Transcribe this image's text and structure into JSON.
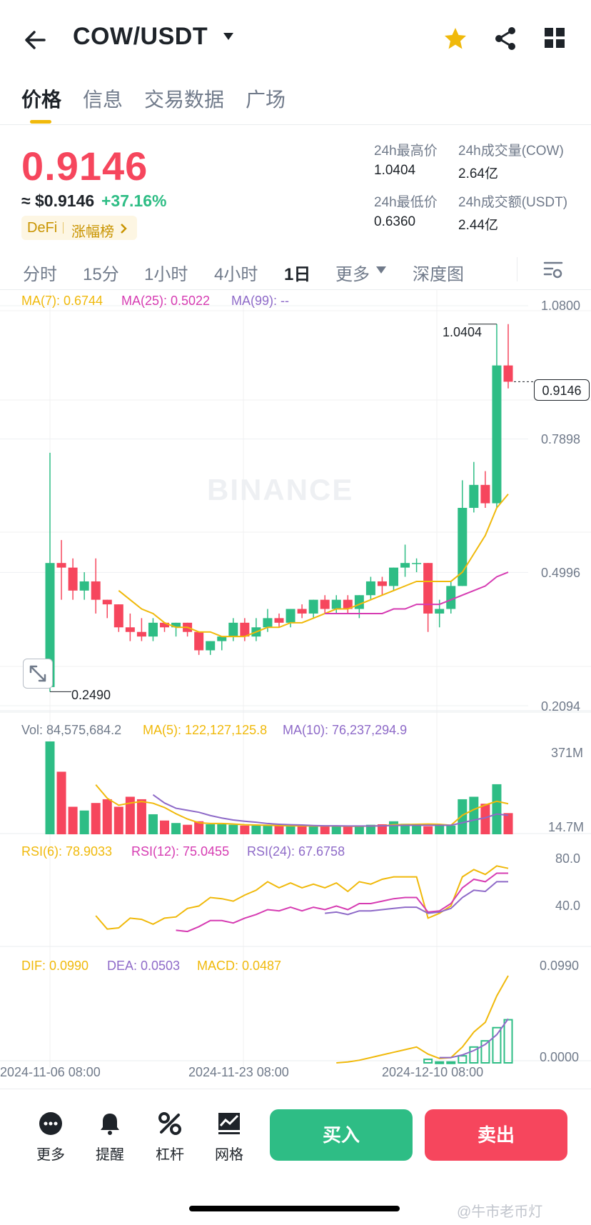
{
  "header": {
    "pair": "COW/USDT",
    "icons": {
      "back": "arrow-left-icon",
      "dropdown": "caret-down-icon",
      "favorite": "star-icon",
      "share": "share-icon",
      "menu": "grid-icon"
    },
    "accent_star": "#f0b90b"
  },
  "tabs": [
    "价格",
    "信息",
    "交易数据",
    "广场"
  ],
  "active_tab": "价格",
  "price": {
    "last": "0.9146",
    "usd": "≈ $0.9146",
    "change": "+37.16%",
    "tag_category": "DeFi",
    "tag_rank": "涨幅榜",
    "up_color": "#2ebd85",
    "down_color": "#f6465d"
  },
  "stats": {
    "high_label": "24h最高价",
    "high_value": "1.0404",
    "vol_label": "24h成交量(COW)",
    "vol_value": "2.64亿",
    "low_label": "24h最低价",
    "low_value": "0.6360",
    "amount_label": "24h成交额(USDT)",
    "amount_value": "2.44亿"
  },
  "periods": [
    "分时",
    "15分",
    "1小时",
    "4小时",
    "1日",
    "更多",
    "深度图"
  ],
  "active_period": "1日",
  "indicators": {
    "ma7": "MA(7): 0.6744",
    "ma25": "MA(25): 0.5022",
    "ma99": "MA(99): --",
    "vol": "Vol: 84,575,684.2",
    "vol_ma5": "MA(5): 122,127,125.8",
    "vol_ma10": "MA(10): 76,237,294.9",
    "rsi6": "RSI(6): 78.9033",
    "rsi12": "RSI(12): 75.0455",
    "rsi24": "RSI(24): 67.6758",
    "dif": "DIF: 0.0990",
    "dea": "DEA: 0.0503",
    "macd": "MACD: 0.0487"
  },
  "axes": {
    "price_ticks": [
      "1.0800",
      "0.7898",
      "0.4996",
      "0.2094"
    ],
    "vol_ticks": [
      "371M",
      "14.7M"
    ],
    "rsi_ticks": [
      "80.0",
      "40.0"
    ],
    "macd_ticks": [
      "0.0990",
      "0.0000"
    ],
    "dates": [
      "2024-11-06 08:00",
      "2024-11-23 08:00",
      "2024-12-10 08:00"
    ],
    "high_marker": "1.0404",
    "low_marker": "0.2490",
    "current_price_tag": "0.9146"
  },
  "chart_data": {
    "type": "candlestick",
    "price_range": [
      0.2094,
      1.08
    ],
    "candles": [
      {
        "o": 0.25,
        "h": 0.76,
        "l": 0.24,
        "c": 0.52
      },
      {
        "o": 0.52,
        "h": 0.57,
        "l": 0.44,
        "c": 0.51
      },
      {
        "o": 0.51,
        "h": 0.53,
        "l": 0.44,
        "c": 0.46
      },
      {
        "o": 0.46,
        "h": 0.5,
        "l": 0.44,
        "c": 0.48
      },
      {
        "o": 0.48,
        "h": 0.53,
        "l": 0.41,
        "c": 0.44
      },
      {
        "o": 0.44,
        "h": 0.44,
        "l": 0.4,
        "c": 0.43
      },
      {
        "o": 0.43,
        "h": 0.43,
        "l": 0.37,
        "c": 0.38
      },
      {
        "o": 0.38,
        "h": 0.41,
        "l": 0.35,
        "c": 0.37
      },
      {
        "o": 0.37,
        "h": 0.4,
        "l": 0.35,
        "c": 0.36
      },
      {
        "o": 0.36,
        "h": 0.4,
        "l": 0.35,
        "c": 0.39
      },
      {
        "o": 0.39,
        "h": 0.39,
        "l": 0.37,
        "c": 0.38
      },
      {
        "o": 0.38,
        "h": 0.39,
        "l": 0.36,
        "c": 0.39
      },
      {
        "o": 0.39,
        "h": 0.39,
        "l": 0.36,
        "c": 0.37
      },
      {
        "o": 0.37,
        "h": 0.37,
        "l": 0.32,
        "c": 0.33
      },
      {
        "o": 0.33,
        "h": 0.35,
        "l": 0.32,
        "c": 0.35
      },
      {
        "o": 0.35,
        "h": 0.36,
        "l": 0.33,
        "c": 0.36
      },
      {
        "o": 0.36,
        "h": 0.4,
        "l": 0.35,
        "c": 0.39
      },
      {
        "o": 0.39,
        "h": 0.4,
        "l": 0.35,
        "c": 0.36
      },
      {
        "o": 0.36,
        "h": 0.4,
        "l": 0.35,
        "c": 0.38
      },
      {
        "o": 0.38,
        "h": 0.42,
        "l": 0.37,
        "c": 0.4
      },
      {
        "o": 0.4,
        "h": 0.41,
        "l": 0.38,
        "c": 0.39
      },
      {
        "o": 0.39,
        "h": 0.42,
        "l": 0.38,
        "c": 0.42
      },
      {
        "o": 0.42,
        "h": 0.43,
        "l": 0.4,
        "c": 0.41
      },
      {
        "o": 0.41,
        "h": 0.44,
        "l": 0.4,
        "c": 0.44
      },
      {
        "o": 0.44,
        "h": 0.45,
        "l": 0.41,
        "c": 0.42
      },
      {
        "o": 0.42,
        "h": 0.45,
        "l": 0.41,
        "c": 0.44
      },
      {
        "o": 0.44,
        "h": 0.45,
        "l": 0.41,
        "c": 0.42
      },
      {
        "o": 0.42,
        "h": 0.45,
        "l": 0.4,
        "c": 0.45
      },
      {
        "o": 0.45,
        "h": 0.49,
        "l": 0.44,
        "c": 0.48
      },
      {
        "o": 0.48,
        "h": 0.49,
        "l": 0.45,
        "c": 0.47
      },
      {
        "o": 0.47,
        "h": 0.51,
        "l": 0.46,
        "c": 0.51
      },
      {
        "o": 0.51,
        "h": 0.56,
        "l": 0.49,
        "c": 0.52
      },
      {
        "o": 0.52,
        "h": 0.53,
        "l": 0.5,
        "c": 0.52
      },
      {
        "o": 0.52,
        "h": 0.52,
        "l": 0.37,
        "c": 0.41
      },
      {
        "o": 0.41,
        "h": 0.44,
        "l": 0.38,
        "c": 0.42
      },
      {
        "o": 0.42,
        "h": 0.48,
        "l": 0.41,
        "c": 0.47
      },
      {
        "o": 0.47,
        "h": 0.7,
        "l": 0.47,
        "c": 0.64
      },
      {
        "o": 0.64,
        "h": 0.74,
        "l": 0.63,
        "c": 0.69
      },
      {
        "o": 0.69,
        "h": 0.72,
        "l": 0.64,
        "c": 0.65
      },
      {
        "o": 0.65,
        "h": 1.04,
        "l": 0.64,
        "c": 0.95
      },
      {
        "o": 0.95,
        "h": 1.04,
        "l": 0.9,
        "c": 0.9146
      }
    ],
    "ma7": [
      null,
      null,
      null,
      null,
      null,
      null,
      0.46,
      0.44,
      0.42,
      0.41,
      0.39,
      0.38,
      0.38,
      0.37,
      0.37,
      0.36,
      0.36,
      0.36,
      0.37,
      0.38,
      0.38,
      0.39,
      0.39,
      0.4,
      0.41,
      0.42,
      0.42,
      0.43,
      0.44,
      0.45,
      0.46,
      0.47,
      0.48,
      0.48,
      0.48,
      0.48,
      0.5,
      0.54,
      0.58,
      0.64,
      0.67
    ],
    "ma25": [
      null,
      null,
      null,
      null,
      null,
      null,
      null,
      null,
      null,
      null,
      null,
      null,
      null,
      null,
      null,
      null,
      null,
      null,
      null,
      null,
      null,
      null,
      null,
      null,
      0.41,
      0.41,
      0.41,
      0.41,
      0.41,
      0.41,
      0.42,
      0.42,
      0.43,
      0.43,
      0.43,
      0.44,
      0.45,
      0.46,
      0.47,
      0.49,
      0.5
    ],
    "volume": [
      371,
      250,
      110,
      95,
      125,
      140,
      110,
      150,
      140,
      80,
      55,
      45,
      38,
      52,
      40,
      40,
      38,
      35,
      35,
      35,
      34,
      35,
      34,
      33,
      32,
      33,
      30,
      34,
      38,
      40,
      52,
      42,
      36,
      32,
      36,
      35,
      140,
      150,
      122,
      200,
      84.6
    ],
    "vol_range": [
      0,
      371
    ],
    "vol_ma5": [
      null,
      null,
      null,
      null,
      198,
      144,
      116,
      125,
      131,
      124,
      107,
      82,
      61,
      46,
      43,
      43,
      41,
      38,
      37,
      36,
      35,
      34,
      34,
      33,
      33,
      33,
      32,
      32,
      33,
      34,
      38,
      39,
      40,
      41,
      40,
      36,
      76,
      99,
      117,
      132,
      122
    ],
    "vol_ma10": [
      null,
      null,
      null,
      null,
      null,
      null,
      null,
      null,
      null,
      158,
      125,
      104,
      96,
      88,
      75,
      65,
      57,
      52,
      48,
      43,
      40,
      38,
      37,
      35,
      34,
      34,
      33,
      33,
      33,
      34,
      35,
      36,
      36,
      36,
      36,
      36,
      46,
      57,
      66,
      81,
      76
    ],
    "rsi6": [
      null,
      null,
      null,
      null,
      40,
      29,
      30,
      38,
      37,
      33,
      38,
      39,
      46,
      48,
      55,
      54,
      52,
      57,
      61,
      68,
      63,
      67,
      63,
      66,
      63,
      67,
      60,
      68,
      66,
      70,
      72,
      72,
      72,
      38,
      42,
      48,
      72,
      78,
      74,
      81,
      79
    ],
    "rsi12": [
      null,
      null,
      null,
      null,
      null,
      null,
      null,
      null,
      null,
      null,
      null,
      28,
      27,
      31,
      36,
      36,
      34,
      38,
      41,
      45,
      44,
      47,
      44,
      47,
      45,
      48,
      45,
      50,
      50,
      52,
      54,
      55,
      55,
      43,
      44,
      50,
      63,
      70,
      68,
      75,
      75
    ],
    "rsi24": [
      null,
      null,
      null,
      null,
      null,
      null,
      null,
      null,
      null,
      null,
      null,
      null,
      null,
      null,
      null,
      null,
      null,
      null,
      null,
      null,
      null,
      null,
      null,
      null,
      42,
      43,
      41,
      44,
      44,
      45,
      46,
      47,
      47,
      42,
      43,
      46,
      55,
      61,
      60,
      68,
      68
    ],
    "rsi_range": [
      0,
      100
    ],
    "dif": [
      null,
      null,
      null,
      null,
      null,
      null,
      null,
      null,
      null,
      null,
      null,
      null,
      null,
      null,
      null,
      null,
      null,
      null,
      null,
      null,
      null,
      null,
      null,
      null,
      null,
      0.0,
      0.001,
      0.003,
      0.006,
      0.009,
      0.012,
      0.015,
      0.018,
      0.01,
      0.005,
      0.006,
      0.018,
      0.035,
      0.046,
      0.076,
      0.099
    ],
    "dea": [
      null,
      null,
      null,
      null,
      null,
      null,
      null,
      null,
      null,
      null,
      null,
      null,
      null,
      null,
      null,
      null,
      null,
      null,
      null,
      null,
      null,
      null,
      null,
      null,
      null,
      null,
      null,
      null,
      null,
      null,
      null,
      null,
      null,
      null,
      0.006,
      0.006,
      0.009,
      0.014,
      0.021,
      0.032,
      0.05
    ],
    "macd": [
      null,
      null,
      null,
      null,
      null,
      null,
      null,
      null,
      null,
      null,
      null,
      null,
      null,
      null,
      null,
      null,
      null,
      null,
      null,
      null,
      null,
      null,
      null,
      null,
      null,
      null,
      null,
      null,
      null,
      null,
      null,
      null,
      null,
      0.004,
      0.001,
      0.001,
      0.008,
      0.018,
      0.025,
      0.04,
      0.049
    ],
    "macd_range": [
      0,
      0.099
    ]
  },
  "bottom_bar": {
    "more": "更多",
    "alert": "提醒",
    "leverage": "杠杆",
    "grid": "网格",
    "buy": "买入",
    "sell": "卖出",
    "icons": {
      "more": "more-dots-icon",
      "alert": "bell-icon",
      "leverage": "percent-icon",
      "grid": "grid-bot-icon"
    }
  },
  "watermark": "BINANCE",
  "footer_mark": "@牛市老币灯"
}
